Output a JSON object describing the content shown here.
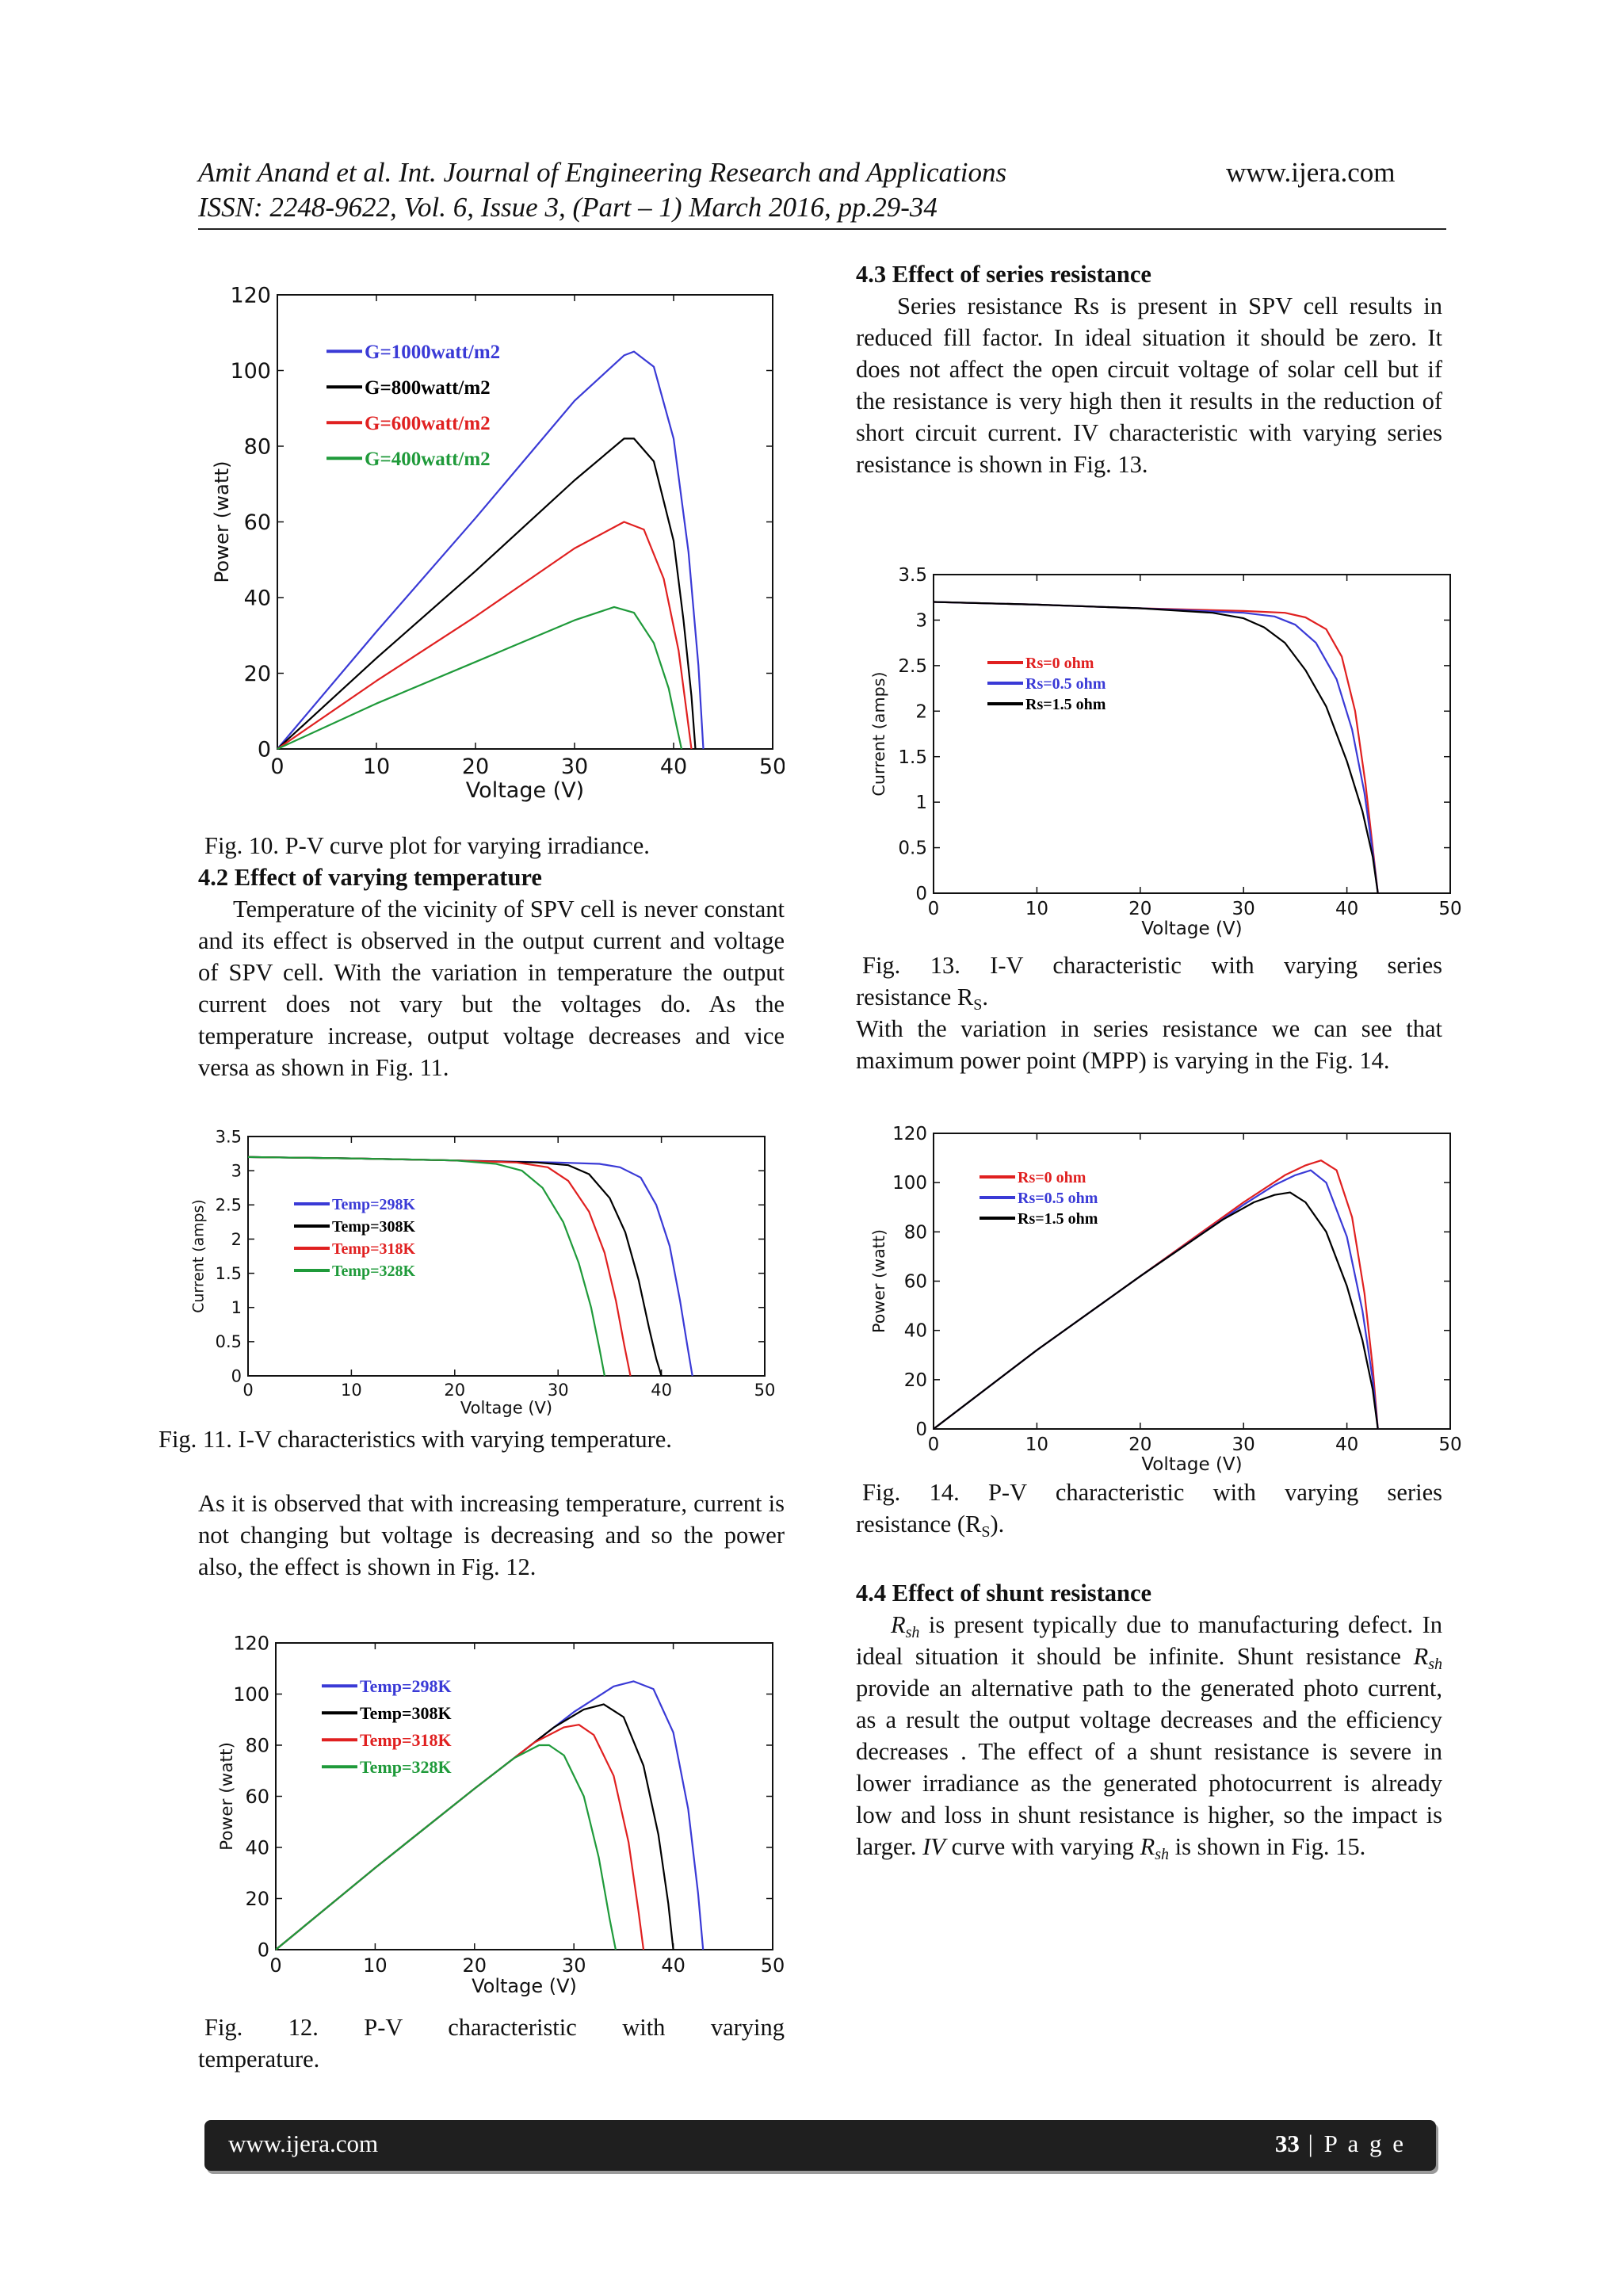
{
  "header": {
    "line1": "Amit Anand et al. Int. Journal of Engineering Research and Applications",
    "site": "www.ijera.com",
    "line2": "ISSN: 2248-9622, Vol. 6, Issue 3, (Part – 1) March 2016, pp.29-34"
  },
  "left": {
    "fig10_caption": "Fig. 10. P-V curve plot for varying irradiance.",
    "sec42_title": "4.2 Effect of varying temperature",
    "sec42_body": "Temperature of the vicinity of SPV cell is never constant and its effect is observed in the output current and voltage of SPV cell. With the variation in temperature the output current does not vary but the voltages do. As the temperature increase, output voltage decreases and vice versa as shown in Fig. 11.",
    "fig11_caption": "Fig. 11. I-V characteristics with varying temperature.",
    "para2": "As it is observed that with increasing temperature, current is not changing but voltage is decreasing and so the power also, the effect is shown in Fig. 12.",
    "fig12_caption_a": "Fig.      12.      P-V      characteristic      with      varying",
    "fig12_caption_b": "temperature."
  },
  "right": {
    "sec43_title": "4.3 Effect of series resistance",
    "sec43_body": "Series resistance Rs is present in SPV cell results in reduced fill factor. In ideal situation it should be zero. It does not affect the open circuit voltage of solar cell but if the resistance is very high then it results in the reduction of short circuit current. IV characteristic with varying series resistance is shown in Fig. 13.",
    "fig13_caption_a": "Fig.   13.   I-V   characteristic   with   varying   series",
    "fig13_caption_b": "resistance R",
    "fig13_caption_sub": "S",
    "fig13_caption_c": ".",
    "para_mpp": "With the variation in series resistance we can see that maximum power point (MPP) is varying in the Fig. 14.",
    "fig14_caption_a": "Fig.   14.   P-V   characteristic   with   varying   series",
    "fig14_caption_b": "resistance (R",
    "fig14_caption_sub": "S",
    "fig14_caption_c": ").",
    "sec44_title": "4.4 Effect of shunt resistance",
    "sec44_body": [
      {
        "t": "R",
        "i": true
      },
      {
        "t": "sh",
        "sub": true,
        "i": true
      },
      {
        "t": " is present typically due to manufacturing defect. In ideal situation it should be infinite. Shunt resistance "
      },
      {
        "t": "R",
        "i": true
      },
      {
        "t": "sh",
        "sub": true,
        "i": true
      },
      {
        "t": " provide an alternative path to the generated photo current, as a result the output voltage decreases and the efficiency decreases . The effect of a shunt resistance is severe in lower irradiance as the generated photocurrent is already low and loss in shunt resistance is higher, so the impact is larger. "
      },
      {
        "t": "IV",
        "i": true
      },
      {
        "t": " curve with varying "
      },
      {
        "t": "R",
        "i": true
      },
      {
        "t": "sh",
        "sub": true,
        "i": true
      },
      {
        "t": " is shown in Fig. 15."
      }
    ]
  },
  "footer": {
    "site": "www.ijera.com",
    "page_number": "33",
    "page_label": " | P a g e"
  },
  "chart_data": [
    {
      "id": "fig10",
      "type": "line",
      "xlabel": "Voltage (V)",
      "ylabel": "Power (watt)",
      "xlim": [
        0,
        50
      ],
      "ylim": [
        0,
        120
      ],
      "xticks": [
        0,
        10,
        20,
        30,
        40,
        50
      ],
      "yticks": [
        0,
        20,
        40,
        60,
        80,
        100,
        120
      ],
      "legend_position": "top-left",
      "grid": false,
      "series": [
        {
          "name": "G=1000watt/m2",
          "color": "#3a3ad6",
          "x": [
            0,
            10,
            20,
            30,
            35,
            36,
            38,
            40,
            41.5,
            42.5,
            43
          ],
          "y": [
            0,
            31,
            61,
            92,
            104,
            105,
            101,
            82,
            52,
            22,
            0
          ]
        },
        {
          "name": "G=800watt/m2",
          "color": "#000000",
          "x": [
            0,
            10,
            20,
            30,
            35,
            36,
            38,
            40,
            41,
            41.8,
            42.2
          ],
          "y": [
            0,
            24,
            47,
            71,
            82,
            82,
            76,
            55,
            34,
            14,
            0
          ]
        },
        {
          "name": "G=600watt/m2",
          "color": "#e02020",
          "x": [
            0,
            10,
            20,
            30,
            35,
            37,
            39,
            40.5,
            41.3,
            41.8
          ],
          "y": [
            0,
            18,
            35,
            53,
            60,
            58,
            45,
            26,
            10,
            0
          ]
        },
        {
          "name": "G=400watt/m2",
          "color": "#1f9a3a",
          "x": [
            0,
            10,
            20,
            30,
            34,
            36,
            38,
            39.5,
            40.3,
            40.8
          ],
          "y": [
            0,
            12,
            23,
            34,
            37.5,
            36,
            28,
            16,
            6,
            0
          ]
        }
      ]
    },
    {
      "id": "fig11",
      "type": "line",
      "xlabel": "Voltage (V)",
      "ylabel": "Current (amps)",
      "xlim": [
        0,
        50
      ],
      "ylim": [
        0,
        3.5
      ],
      "xticks": [
        0,
        10,
        20,
        30,
        40,
        50
      ],
      "yticks": [
        0,
        0.5,
        1,
        1.5,
        2,
        2.5,
        3,
        3.5
      ],
      "legend_position": "center-left",
      "grid": false,
      "series": [
        {
          "name": "Temp=298K",
          "color": "#3a3ad6",
          "x": [
            0,
            10,
            20,
            30,
            34,
            36,
            38,
            39.5,
            40.8,
            41.8,
            42.5,
            43
          ],
          "y": [
            3.2,
            3.18,
            3.15,
            3.12,
            3.1,
            3.05,
            2.9,
            2.5,
            1.9,
            1.1,
            0.45,
            0
          ]
        },
        {
          "name": "Temp=308K",
          "color": "#000000",
          "x": [
            0,
            10,
            20,
            28,
            31,
            33,
            35,
            36.5,
            37.8,
            38.8,
            39.5,
            40
          ],
          "y": [
            3.2,
            3.18,
            3.15,
            3.12,
            3.08,
            2.95,
            2.6,
            2.1,
            1.4,
            0.7,
            0.25,
            0
          ]
        },
        {
          "name": "Temp=318K",
          "color": "#e02020",
          "x": [
            0,
            10,
            20,
            26,
            29,
            31,
            33,
            34.5,
            35.6,
            36.4,
            37
          ],
          "y": [
            3.2,
            3.18,
            3.15,
            3.12,
            3.05,
            2.85,
            2.4,
            1.8,
            1.1,
            0.45,
            0
          ]
        },
        {
          "name": "Temp=328K",
          "color": "#1f9a3a",
          "x": [
            0,
            10,
            20,
            24,
            26.5,
            28.5,
            30.5,
            32,
            33.2,
            34,
            34.5
          ],
          "y": [
            3.2,
            3.18,
            3.15,
            3.1,
            3.0,
            2.75,
            2.25,
            1.65,
            1.0,
            0.4,
            0
          ]
        }
      ]
    },
    {
      "id": "fig12",
      "type": "line",
      "xlabel": "Voltage (V)",
      "ylabel": "Power (watt)",
      "xlim": [
        0,
        50
      ],
      "ylim": [
        0,
        120
      ],
      "xticks": [
        0,
        10,
        20,
        30,
        40,
        50
      ],
      "yticks": [
        0,
        20,
        40,
        60,
        80,
        100,
        120
      ],
      "legend_position": "top-left",
      "grid": false,
      "series": [
        {
          "name": "Temp=298K",
          "color": "#3a3ad6",
          "x": [
            0,
            10,
            20,
            30,
            34,
            36,
            38,
            40,
            41.5,
            42.5,
            43
          ],
          "y": [
            0,
            32,
            63,
            93,
            103,
            105,
            102,
            85,
            55,
            22,
            0
          ]
        },
        {
          "name": "Temp=308K",
          "color": "#000000",
          "x": [
            0,
            10,
            20,
            28,
            31,
            33,
            35,
            37,
            38.5,
            39.5,
            40
          ],
          "y": [
            0,
            32,
            63,
            87,
            94,
            96,
            91,
            72,
            45,
            18,
            0
          ]
        },
        {
          "name": "Temp=318K",
          "color": "#e02020",
          "x": [
            0,
            10,
            20,
            26,
            29,
            30.5,
            32,
            34,
            35.5,
            36.5,
            37
          ],
          "y": [
            0,
            32,
            63,
            81,
            87,
            88,
            84,
            68,
            42,
            15,
            0
          ]
        },
        {
          "name": "Temp=328K",
          "color": "#1f9a3a",
          "x": [
            0,
            10,
            20,
            24,
            26.5,
            27.5,
            29,
            31,
            32.5,
            33.6,
            34.2
          ],
          "y": [
            0,
            32,
            63,
            75,
            80,
            80,
            76,
            60,
            36,
            12,
            0
          ]
        }
      ]
    },
    {
      "id": "fig13",
      "type": "line",
      "xlabel": "Voltage (V)",
      "ylabel": "Current (amps)",
      "xlim": [
        0,
        50
      ],
      "ylim": [
        0,
        3.5
      ],
      "xticks": [
        0,
        10,
        20,
        30,
        40,
        50
      ],
      "yticks": [
        0,
        0.5,
        1,
        1.5,
        2,
        2.5,
        3,
        3.5
      ],
      "legend_position": "center-left",
      "grid": false,
      "series": [
        {
          "name": "Rs=0 ohm",
          "color": "#e02020",
          "x": [
            0,
            10,
            20,
            30,
            34,
            36,
            38,
            39.5,
            40.8,
            41.8,
            42.5,
            43
          ],
          "y": [
            3.2,
            3.17,
            3.13,
            3.1,
            3.08,
            3.03,
            2.9,
            2.6,
            2.0,
            1.2,
            0.5,
            0
          ]
        },
        {
          "name": "Rs=0.5 ohm",
          "color": "#3a3ad6",
          "x": [
            0,
            10,
            20,
            30,
            33,
            35,
            37,
            39,
            40.5,
            41.7,
            42.5,
            43
          ],
          "y": [
            3.2,
            3.17,
            3.13,
            3.08,
            3.04,
            2.95,
            2.75,
            2.35,
            1.8,
            1.1,
            0.45,
            0
          ]
        },
        {
          "name": "Rs=1.5 ohm",
          "color": "#000000",
          "x": [
            0,
            10,
            20,
            27,
            30,
            32,
            34,
            36,
            38,
            40,
            41.5,
            42.5,
            43
          ],
          "y": [
            3.2,
            3.17,
            3.13,
            3.08,
            3.02,
            2.92,
            2.75,
            2.45,
            2.05,
            1.45,
            0.9,
            0.4,
            0
          ]
        }
      ]
    },
    {
      "id": "fig14",
      "type": "line",
      "xlabel": "Voltage (V)",
      "ylabel": "Power (watt)",
      "xlim": [
        0,
        50
      ],
      "ylim": [
        0,
        120
      ],
      "xticks": [
        0,
        10,
        20,
        30,
        40,
        50
      ],
      "yticks": [
        0,
        20,
        40,
        60,
        80,
        100,
        120
      ],
      "legend_position": "top-left",
      "grid": false,
      "series": [
        {
          "name": "Rs=0 ohm",
          "color": "#e02020",
          "x": [
            0,
            10,
            20,
            30,
            34,
            36,
            37.5,
            39,
            40.5,
            41.7,
            42.5,
            43
          ],
          "y": [
            0,
            32,
            62,
            92,
            103,
            107,
            109,
            105,
            86,
            55,
            25,
            0
          ]
        },
        {
          "name": "Rs=0.5 ohm",
          "color": "#3a3ad6",
          "x": [
            0,
            10,
            20,
            30,
            33,
            35,
            36.5,
            38,
            40,
            41.5,
            42.5,
            43
          ],
          "y": [
            0,
            32,
            62,
            91,
            99,
            103,
            105,
            100,
            78,
            48,
            20,
            0
          ]
        },
        {
          "name": "Rs=1.5 ohm",
          "color": "#000000",
          "x": [
            0,
            10,
            20,
            28,
            31,
            33,
            34.5,
            36,
            38,
            40,
            41.5,
            42.5,
            43
          ],
          "y": [
            0,
            32,
            62,
            85,
            92,
            95,
            96,
            92,
            80,
            58,
            36,
            16,
            0
          ]
        }
      ]
    }
  ]
}
